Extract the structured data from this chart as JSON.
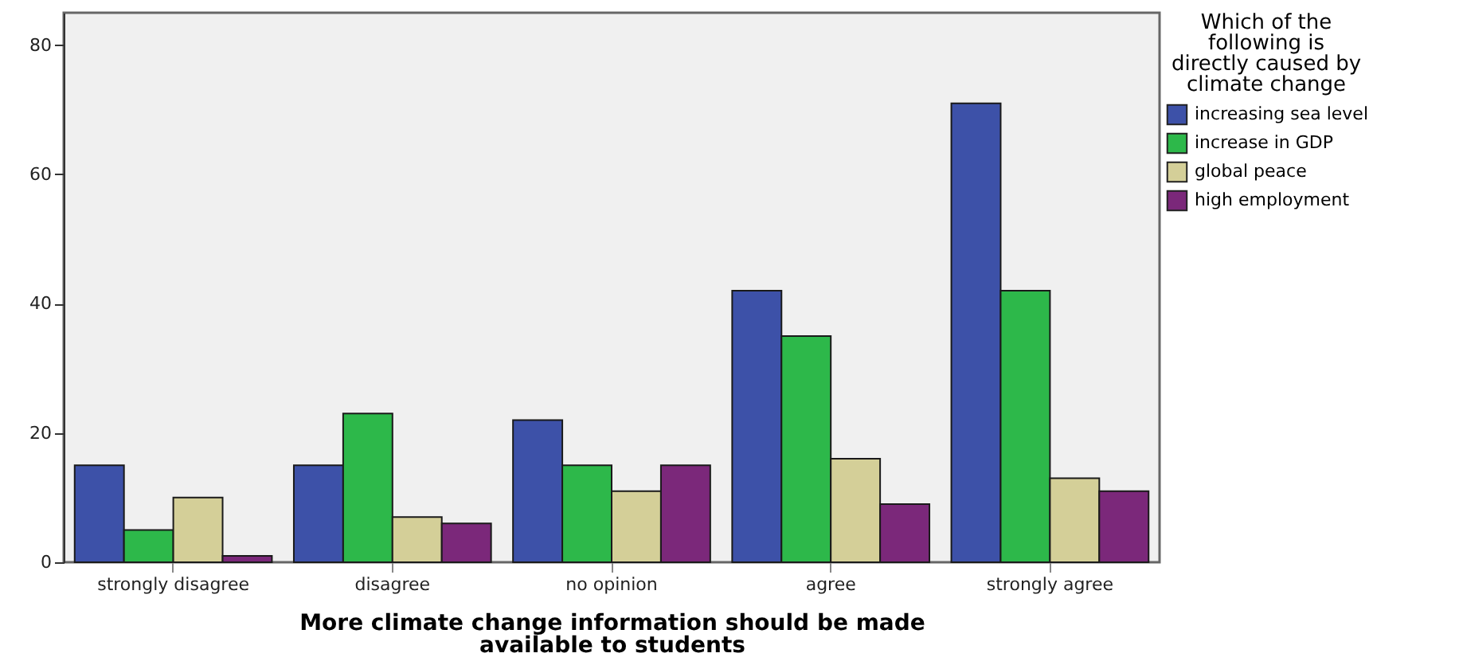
{
  "chart_data": {
    "type": "bar",
    "xlabel": "More climate change information should be made available to students",
    "legend_title": "Which of the following is directly caused by climate change",
    "categories": [
      "strongly disagree",
      "disagree",
      "no opinion",
      "agree",
      "strongly agree"
    ],
    "series": [
      {
        "name": "increasing sea level",
        "color": "#3d51a8",
        "values": [
          15,
          15,
          22,
          42,
          71
        ]
      },
      {
        "name": "increase in GDP",
        "color": "#2db84a",
        "values": [
          5,
          23,
          15,
          35,
          42
        ]
      },
      {
        "name": "global peace",
        "color": "#d4cf98",
        "values": [
          10,
          7,
          11,
          16,
          13
        ]
      },
      {
        "name": "high employment",
        "color": "#7b287a",
        "values": [
          1,
          6,
          15,
          9,
          11
        ]
      }
    ],
    "ylim": [
      0,
      85
    ],
    "yticks": [
      0,
      20,
      40,
      60,
      80
    ],
    "grid": false,
    "legend": "top right"
  }
}
